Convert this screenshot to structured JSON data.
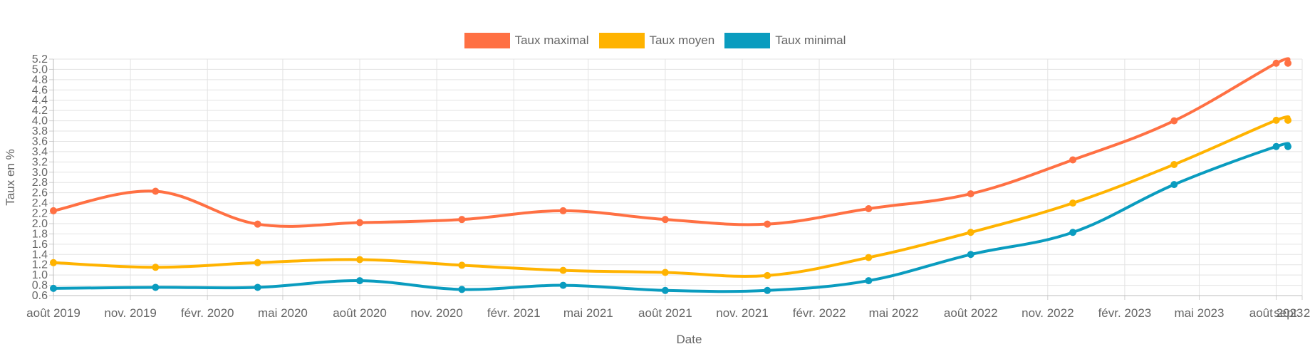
{
  "chart_data": {
    "type": "line",
    "title": "",
    "xlabel": "Date",
    "ylabel": "Taux en %",
    "ylim": [
      0.6,
      5.2
    ],
    "y_ticks": [
      "0.6",
      "0.8",
      "1.0",
      "1.2",
      "1.4",
      "1.6",
      "1.8",
      "2.0",
      "2.2",
      "2.4",
      "2.6",
      "2.8",
      "3.0",
      "3.2",
      "3.4",
      "3.6",
      "3.8",
      "4.0",
      "4.2",
      "4.4",
      "4.6",
      "4.8",
      "5.0",
      "5.2"
    ],
    "x_ticks": [
      "août 2019",
      "nov. 2019",
      "févr. 2020",
      "mai 2020",
      "août 2020",
      "nov. 2020",
      "févr. 2021",
      "mai 2021",
      "août 2021",
      "nov. 2021",
      "févr. 2022",
      "mai 2022",
      "août 2022",
      "nov. 2022",
      "févr. 2023",
      "mai 2023",
      "août 2023",
      "sept. 2023"
    ],
    "x": [
      "2019-08-01",
      "2019-12-01",
      "2020-04-01",
      "2020-08-01",
      "2020-12-01",
      "2021-04-01",
      "2021-08-01",
      "2021-12-01",
      "2022-04-01",
      "2022-08-01",
      "2022-12-01",
      "2023-04-01",
      "2023-08-01",
      "2023-08-15"
    ],
    "grid": true,
    "legend_position": "top",
    "series": [
      {
        "name": "Taux maximal",
        "color": "#ff7043",
        "values": [
          2.25,
          2.63,
          1.99,
          2.02,
          2.08,
          2.25,
          2.08,
          1.99,
          2.29,
          2.58,
          3.24,
          4.0,
          5.12,
          5.12
        ]
      },
      {
        "name": "Taux moyen",
        "color": "#ffb300",
        "values": [
          1.24,
          1.15,
          1.24,
          1.3,
          1.19,
          1.09,
          1.05,
          0.99,
          1.34,
          1.83,
          2.4,
          3.15,
          4.01,
          4.01
        ]
      },
      {
        "name": "Taux minimal",
        "color": "#0a9cbf",
        "values": [
          0.74,
          0.76,
          0.76,
          0.89,
          0.72,
          0.8,
          0.7,
          0.7,
          0.89,
          1.4,
          1.83,
          2.76,
          3.5,
          3.5
        ]
      }
    ]
  }
}
